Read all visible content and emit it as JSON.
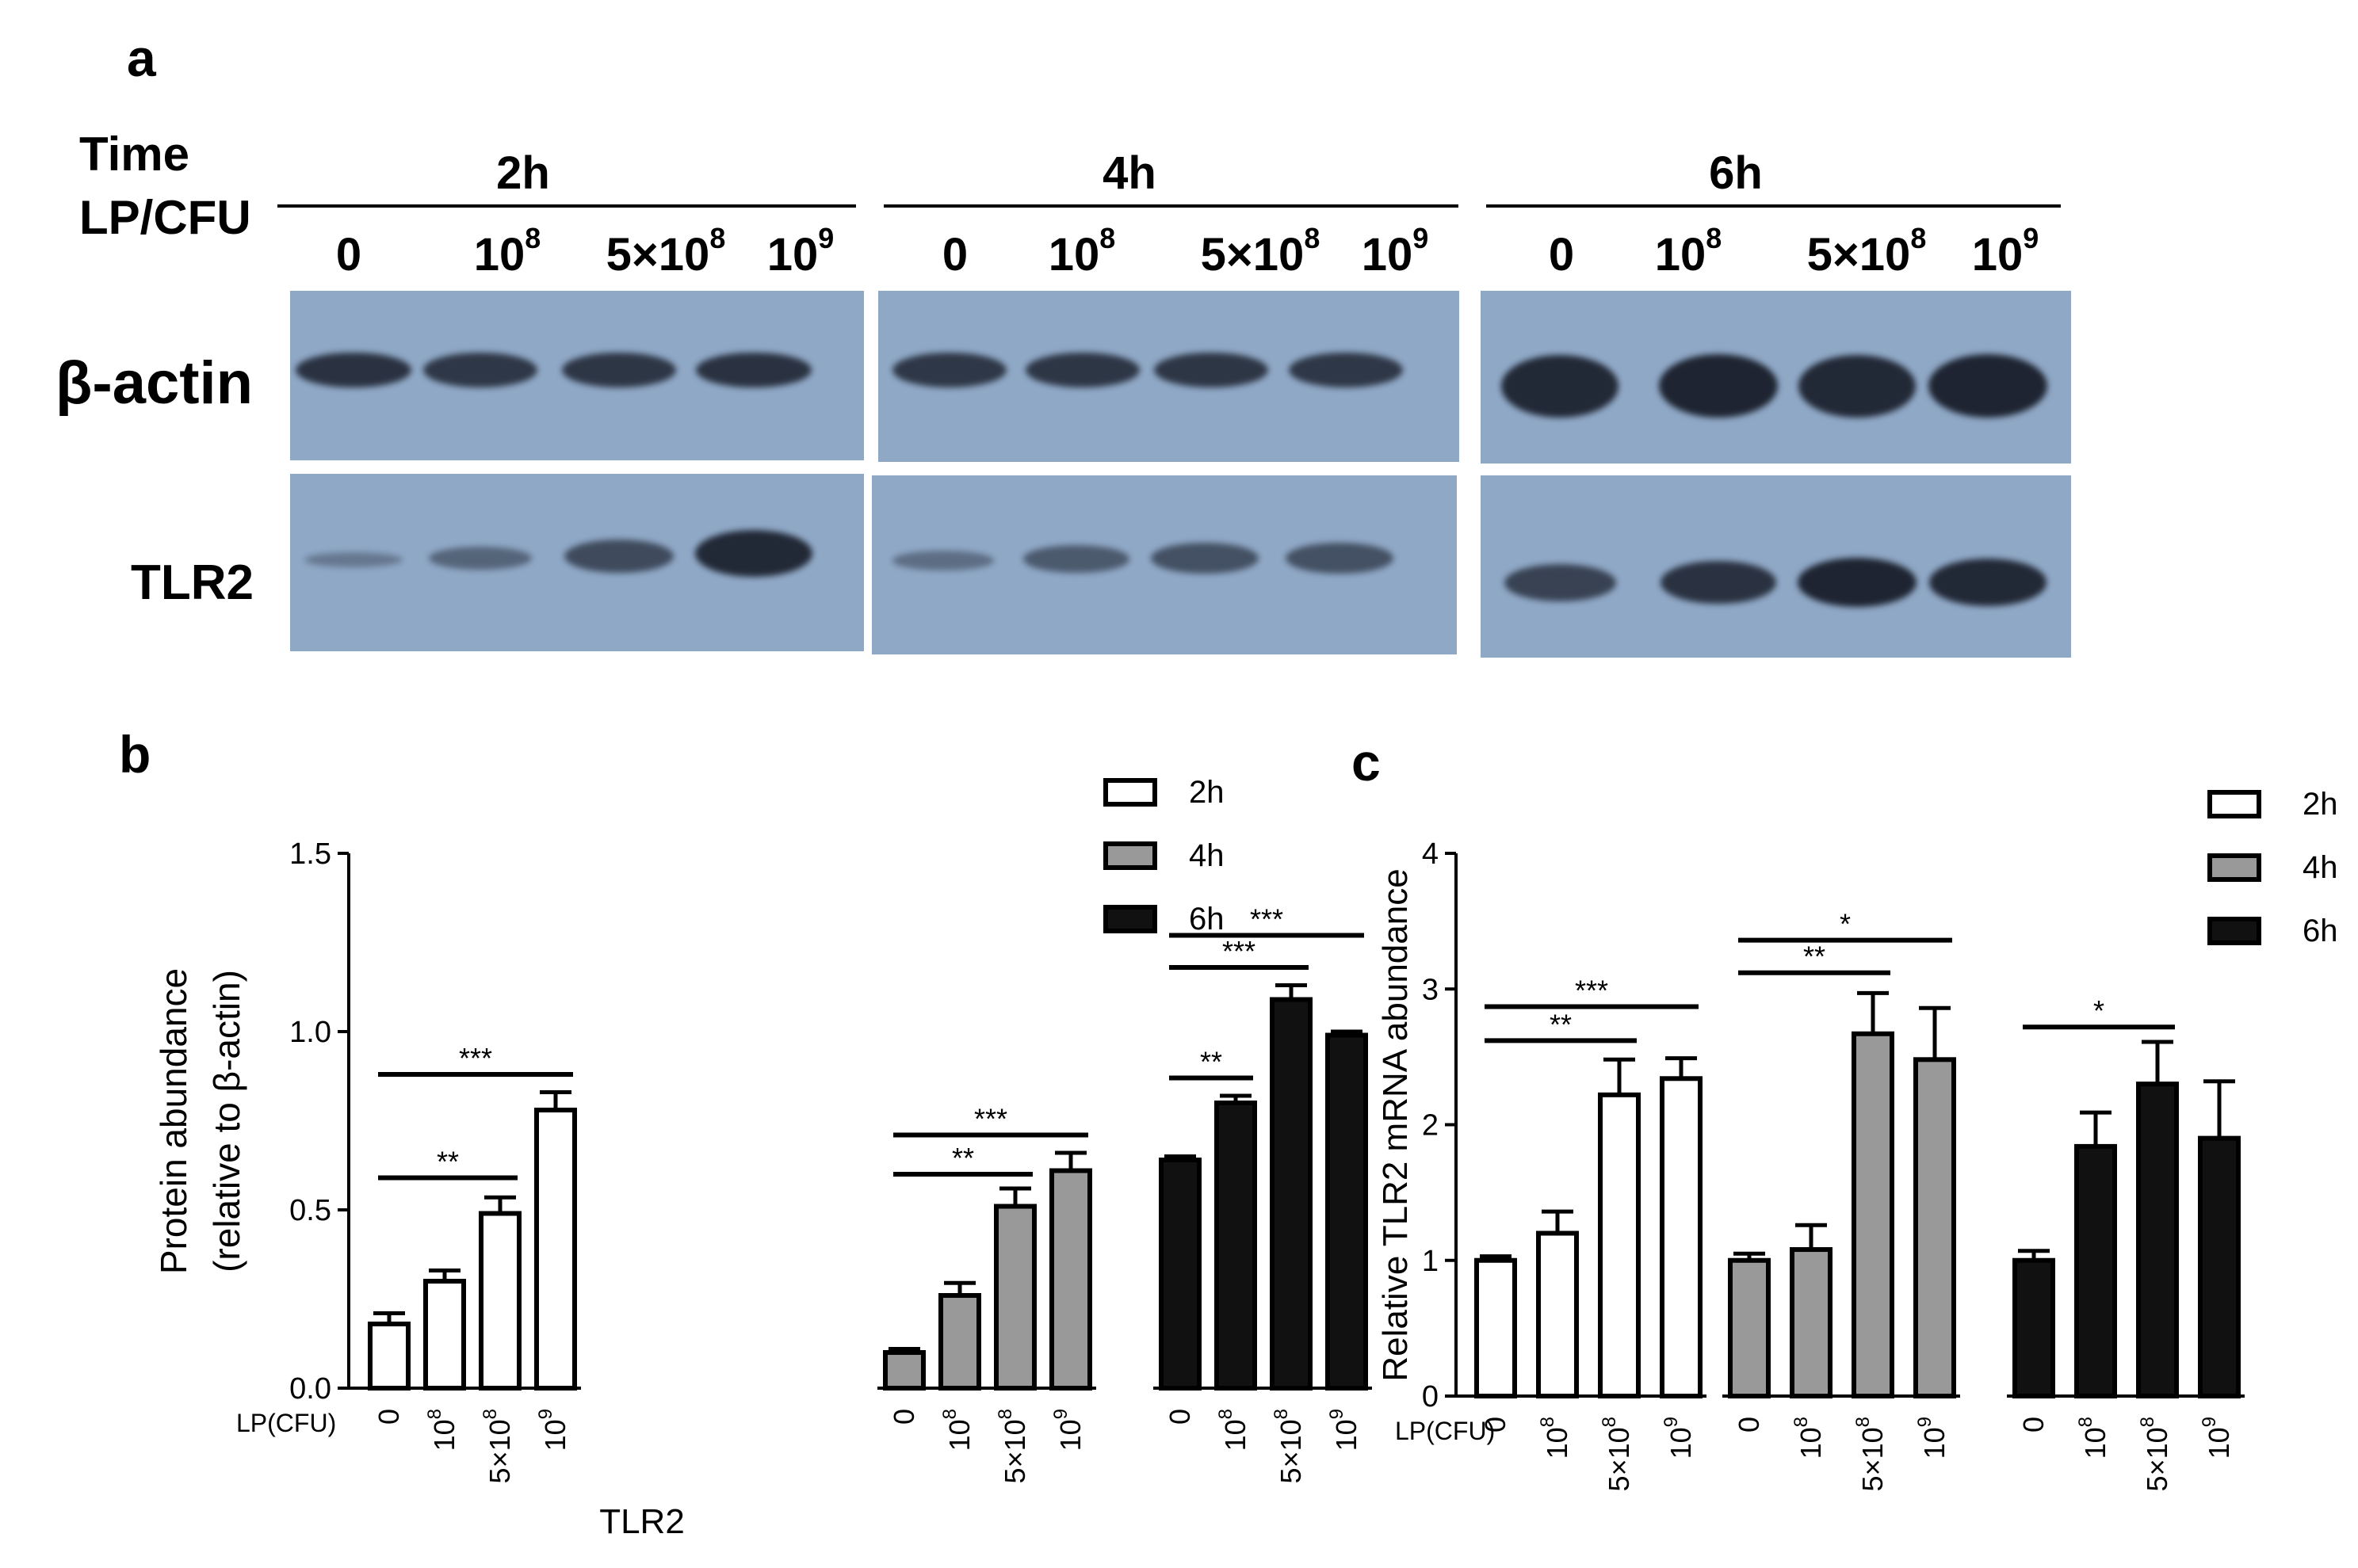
{
  "panel_a": {
    "letter": "a",
    "time_label": "Time",
    "dose_label": "LP/CFU",
    "groups": [
      {
        "label": "2h",
        "lanes": [
          "0",
          "10^8",
          "5×10^8",
          "10^9"
        ]
      },
      {
        "label": "4h",
        "lanes": [
          "0",
          "10^8",
          "5×10^8",
          "10^9"
        ]
      },
      {
        "label": "6h",
        "lanes": [
          "0",
          "10^8",
          "5×10^8",
          "10^9"
        ]
      }
    ],
    "row_labels": {
      "actin": "β-actin",
      "tlr2": "TLR2"
    },
    "blot_color": "#8fa8c6",
    "band_intensity": {
      "actin": [
        [
          0.85,
          0.8,
          0.82,
          0.85
        ],
        [
          0.8,
          0.82,
          0.82,
          0.8
        ],
        [
          0.95,
          1.0,
          0.95,
          1.0
        ]
      ],
      "tlr2": [
        [
          0.15,
          0.35,
          0.6,
          0.95
        ],
        [
          0.25,
          0.45,
          0.55,
          0.55
        ],
        [
          0.7,
          0.85,
          1.0,
          0.95
        ]
      ]
    }
  },
  "chart_data": [
    {
      "panel": "b",
      "type": "bar",
      "ylabel": "Protein abundance",
      "ylabel2": "(relative to β-actin)",
      "xlabel": "TLR2",
      "x_prefix": "LP(CFU)",
      "ylim": [
        0,
        1.5
      ],
      "yticks": [
        "0.0",
        "0.5",
        "1.0",
        "1.5"
      ],
      "ytick_values": [
        0,
        0.5,
        1.0,
        1.5
      ],
      "categories": [
        "0",
        "10^8",
        "5×10^8",
        "10^9"
      ],
      "series": [
        {
          "name": "2h",
          "color": "#ffffff",
          "values": [
            0.18,
            0.3,
            0.49,
            0.78
          ],
          "errors": [
            0.03,
            0.03,
            0.045,
            0.05
          ]
        },
        {
          "name": "4h",
          "color": "#999999",
          "values": [
            0.1,
            0.26,
            0.51,
            0.61
          ],
          "errors": [
            0.01,
            0.035,
            0.05,
            0.05
          ]
        },
        {
          "name": "6h",
          "color": "#111111",
          "values": [
            0.64,
            0.8,
            1.09,
            0.99
          ],
          "errors": [
            0.01,
            0.02,
            0.04,
            0.01
          ]
        }
      ],
      "significance": [
        {
          "series": 0,
          "from": 0,
          "to": 2,
          "label": "**",
          "y": 0.59
        },
        {
          "series": 0,
          "from": 0,
          "to": 3,
          "label": "***",
          "y": 0.88
        },
        {
          "series": 1,
          "from": 0,
          "to": 2,
          "label": "**",
          "y": 0.6
        },
        {
          "series": 1,
          "from": 0,
          "to": 3,
          "label": "***",
          "y": 0.71
        },
        {
          "series": 2,
          "from": 0,
          "to": 1,
          "label": "**",
          "y": 0.87
        },
        {
          "series": 2,
          "from": 0,
          "to": 2,
          "label": "***",
          "y": 1.18
        },
        {
          "series": 2,
          "from": 0,
          "to": 3,
          "label": "***",
          "y": 1.27
        }
      ],
      "legend": [
        "2h",
        "4h",
        "6h"
      ]
    },
    {
      "panel": "c",
      "type": "bar",
      "ylabel": "Relative TLR2  mRNA abundance",
      "x_prefix": "LP(CFU)",
      "ylim": [
        0,
        4
      ],
      "yticks": [
        "0",
        "1",
        "2",
        "3",
        "4"
      ],
      "ytick_values": [
        0,
        1,
        2,
        3,
        4
      ],
      "categories": [
        "0",
        "10^8",
        "5×10^8",
        "10^9"
      ],
      "series": [
        {
          "name": "2h",
          "color": "#ffffff",
          "values": [
            1.0,
            1.2,
            2.22,
            2.34
          ],
          "errors": [
            0.03,
            0.16,
            0.26,
            0.15
          ]
        },
        {
          "name": "4h",
          "color": "#999999",
          "values": [
            1.0,
            1.08,
            2.67,
            2.48
          ],
          "errors": [
            0.05,
            0.18,
            0.3,
            0.38
          ]
        },
        {
          "name": "6h",
          "color": "#111111",
          "values": [
            1.0,
            1.84,
            2.3,
            1.9
          ],
          "errors": [
            0.07,
            0.25,
            0.31,
            0.42
          ]
        }
      ],
      "significance": [
        {
          "series": 0,
          "from": 0,
          "to": 2,
          "label": "**",
          "y": 2.62
        },
        {
          "series": 0,
          "from": 0,
          "to": 3,
          "label": "***",
          "y": 2.87
        },
        {
          "series": 1,
          "from": 0,
          "to": 2,
          "label": "**",
          "y": 3.12
        },
        {
          "series": 1,
          "from": 0,
          "to": 3,
          "label": "*",
          "y": 3.36
        },
        {
          "series": 2,
          "from": 0,
          "to": 2,
          "label": "*",
          "y": 2.72
        }
      ],
      "legend": [
        "2h",
        "4h",
        "6h"
      ]
    }
  ]
}
